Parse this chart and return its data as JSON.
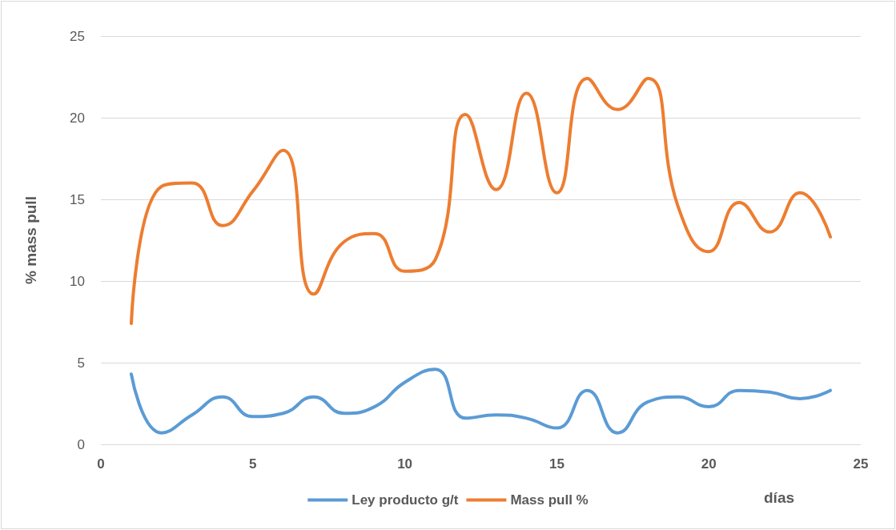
{
  "chart_data": {
    "type": "line",
    "xlabel": "días",
    "ylabel": "% mass pull",
    "x": [
      1,
      2,
      3,
      4,
      5,
      6,
      7,
      8,
      9,
      10,
      11,
      12,
      13,
      14,
      15,
      16,
      17,
      18,
      19,
      20,
      21,
      22,
      23,
      24
    ],
    "series": [
      {
        "name": "Ley producto g/t",
        "color": "#5b9bd5",
        "values": [
          4.3,
          0.7,
          1.8,
          2.9,
          1.7,
          1.9,
          2.9,
          1.9,
          2.3,
          3.8,
          4.6,
          1.6,
          1.8,
          1.6,
          1.0,
          3.3,
          0.7,
          2.6,
          2.9,
          2.3,
          3.3,
          3.2,
          2.8,
          3.3
        ]
      },
      {
        "name": "Mass pull %",
        "color": "#ed7d31",
        "values": [
          7.4,
          15.8,
          16.0,
          13.4,
          15.5,
          18.0,
          9.2,
          12.4,
          12.9,
          10.6,
          11.3,
          20.2,
          15.6,
          21.5,
          15.4,
          22.4,
          20.5,
          22.4,
          14.5,
          11.8,
          14.8,
          13.0,
          15.4,
          12.7
        ]
      }
    ],
    "xlim": [
      0,
      25
    ],
    "xticks": [
      0,
      5,
      10,
      15,
      20,
      25
    ],
    "ylim": [
      0,
      25
    ],
    "yticks": [
      0,
      5,
      10,
      15,
      20,
      25
    ],
    "grid": "y",
    "legend": "bottom",
    "marker": "none",
    "line_style": "solid"
  }
}
